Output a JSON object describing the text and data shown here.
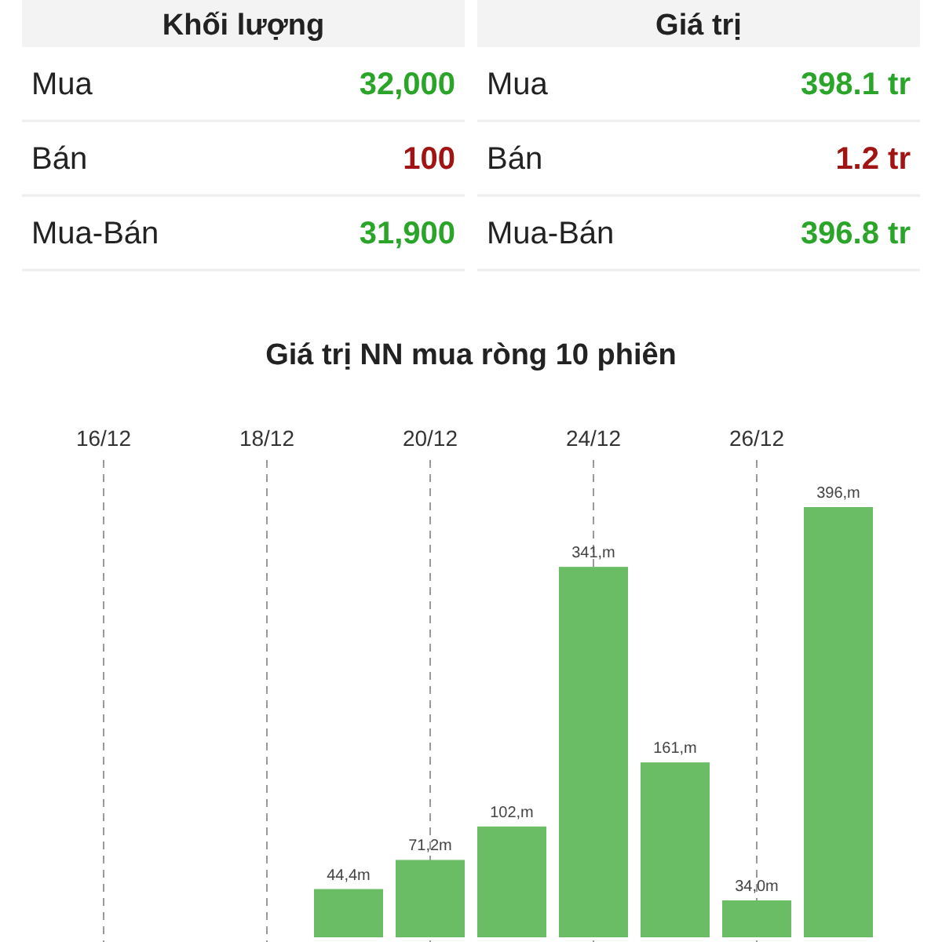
{
  "chart_data": [
    {
      "type": "other",
      "title": "Khối lượng",
      "categories": [
        "Mua",
        "Bán",
        "Mua-Bán"
      ],
      "value_labels": [
        "32,000",
        "100",
        "31,900"
      ],
      "colors": [
        "#2aa52a",
        "#a01414",
        "#2aa52a"
      ]
    },
    {
      "type": "other",
      "title": "Giá trị",
      "categories": [
        "Mua",
        "Bán",
        "Mua-Bán"
      ],
      "value_labels": [
        "398.1 tr",
        "1.2 tr",
        "396.8 tr"
      ],
      "colors": [
        "#2aa52a",
        "#a01414",
        "#2aa52a"
      ]
    },
    {
      "type": "bar",
      "title": "Giá trị NN mua ròng 10 phiên",
      "categories": [
        "16/12",
        null,
        "18/12",
        null,
        "20/12",
        null,
        "24/12",
        null,
        "26/12",
        null
      ],
      "values": [
        null,
        null,
        null,
        44.4,
        71.2,
        102,
        341,
        161,
        34.0,
        396
      ],
      "value_labels": [
        null,
        null,
        null,
        "44,4m",
        "71,2m",
        "102,m",
        "341,m",
        "161,m",
        "34,0m",
        "396,m"
      ],
      "color": "#6abd65",
      "grid": "x"
    }
  ]
}
